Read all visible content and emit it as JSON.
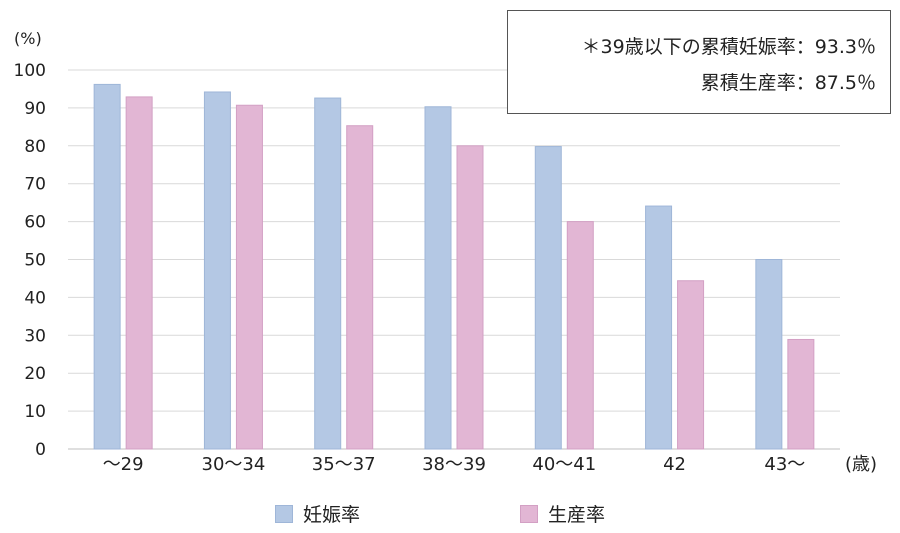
{
  "chart_data": {
    "type": "bar",
    "ylabel": "(%)",
    "xunit": "(歳)",
    "ylim": [
      0,
      100
    ],
    "yticks": [
      0,
      10,
      20,
      30,
      40,
      50,
      60,
      70,
      80,
      90,
      100
    ],
    "categories": [
      "〜29",
      "30〜34",
      "35〜37",
      "38〜39",
      "40〜41",
      "42",
      "43〜"
    ],
    "series": [
      {
        "name": "妊娠率",
        "color": "#b4c8e4",
        "stroke": "#9fb6d8",
        "values": [
          96.2,
          94.2,
          92.6,
          90.3,
          79.8,
          64.1,
          50.0
        ]
      },
      {
        "name": "生産率",
        "color": "#e2b6d4",
        "stroke": "#d3a0c4",
        "values": [
          92.9,
          90.7,
          85.3,
          80.0,
          60.0,
          44.4,
          28.9
        ]
      }
    ],
    "legend_position": "bottom",
    "grid": true,
    "annotation": {
      "line1": "＊39歳以下の累積妊娠率：93.3％",
      "line2": "累積生産率：87.5％"
    }
  }
}
